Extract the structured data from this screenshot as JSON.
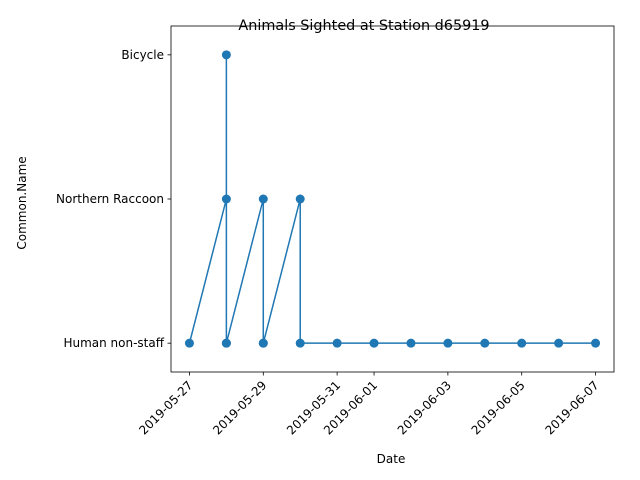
{
  "chart_data": {
    "type": "line",
    "title": "Animals Sighted at Station d65919",
    "xlabel": "Date",
    "ylabel": "Common.Name",
    "categories_y": [
      "Human non-staff",
      "Northern Raccoon",
      "Bicycle"
    ],
    "x_ticks": [
      "2019-05-27",
      "2019-05-29",
      "2019-05-31",
      "2019-06-01",
      "2019-06-03",
      "2019-06-05",
      "2019-06-07"
    ],
    "xlim": [
      "2019-05-26 12:00",
      "2019-06-07 12:00"
    ],
    "grid": false,
    "marker": "circle",
    "color": "#1f77b4",
    "series": [
      {
        "points": [
          {
            "x": "2019-05-27",
            "y": "Human non-staff"
          },
          {
            "x": "2019-05-28",
            "y": "Northern Raccoon"
          },
          {
            "x": "2019-05-28",
            "y": "Human non-staff"
          },
          {
            "x": "2019-05-28",
            "y": "Bicycle"
          },
          {
            "x": "2019-05-28",
            "y": "Human non-staff"
          },
          {
            "x": "2019-05-29",
            "y": "Northern Raccoon"
          },
          {
            "x": "2019-05-29",
            "y": "Human non-staff"
          },
          {
            "x": "2019-05-29",
            "y": "Human non-staff"
          },
          {
            "x": "2019-05-30",
            "y": "Northern Raccoon"
          },
          {
            "x": "2019-05-30",
            "y": "Human non-staff"
          },
          {
            "x": "2019-05-31",
            "y": "Human non-staff"
          },
          {
            "x": "2019-06-01",
            "y": "Human non-staff"
          },
          {
            "x": "2019-06-02",
            "y": "Human non-staff"
          },
          {
            "x": "2019-06-03",
            "y": "Human non-staff"
          },
          {
            "x": "2019-06-04",
            "y": "Human non-staff"
          },
          {
            "x": "2019-06-05",
            "y": "Human non-staff"
          },
          {
            "x": "2019-06-06",
            "y": "Human non-staff"
          },
          {
            "x": "2019-06-07",
            "y": "Human non-staff"
          }
        ]
      }
    ]
  }
}
